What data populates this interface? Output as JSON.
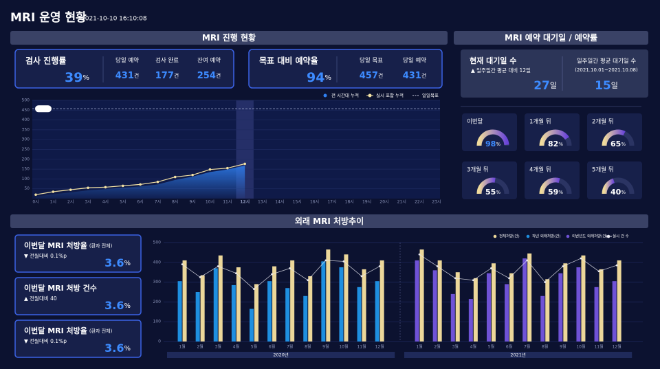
{
  "header": {
    "title": "MRI 운영 현황",
    "datetime": "2021-10-10 16:10:08"
  },
  "progress": {
    "title": "MRI 진행 현황",
    "kpi1": {
      "label": "검사 진행률",
      "value": 39,
      "unit": "%",
      "items": [
        {
          "label": "당일 예약",
          "value": 431,
          "unit": "건"
        },
        {
          "label": "검사 완료",
          "value": 177,
          "unit": "건"
        },
        {
          "label": "잔여 예약",
          "value": 254,
          "unit": "건"
        }
      ]
    },
    "kpi2": {
      "label": "목표 대비 예약율",
      "value": 94,
      "unit": "%",
      "items": [
        {
          "label": "당일 목표",
          "value": 457,
          "unit": "건"
        },
        {
          "label": "당일 예약",
          "value": 431,
          "unit": "건"
        }
      ]
    }
  },
  "reservation": {
    "title": "MRI 예약 대기일 / 예약률",
    "current": {
      "label": "현재 대기일 수",
      "note": "▲ 일주일간 평균 대비 12일",
      "value": 27,
      "unit": "일"
    },
    "weekly": {
      "label": "일주일간 평균 대기일 수",
      "period": "(2021.10.01~2021.10.08)",
      "value": 15,
      "unit": "일"
    },
    "gauges": [
      {
        "label": "이번달",
        "value": 98,
        "unit": "%"
      },
      {
        "label": "1개월 뒤",
        "value": 82,
        "unit": "%"
      },
      {
        "label": "2개월 뒤",
        "value": 65,
        "unit": "%"
      },
      {
        "label": "3개월 뒤",
        "value": 55,
        "unit": "%"
      },
      {
        "label": "4개월 뒤",
        "value": 59,
        "unit": "%"
      },
      {
        "label": "5개월 뒤",
        "value": 40,
        "unit": "%"
      }
    ]
  },
  "prescription": {
    "title": "외래 MRI 처방추이",
    "cards": [
      {
        "title": "이번달 MRI 처방율",
        "sub": "(환자 전체)",
        "change": "▼ 전월대비 0.1%p",
        "direction": "down",
        "value": 3.6,
        "unit": "%"
      },
      {
        "title": "이번달 MRI 처방 건수",
        "sub": "",
        "change": "▲ 전월대비 40",
        "direction": "up",
        "value": 3.6,
        "unit": "%"
      },
      {
        "title": "이번달 MRI 처방율",
        "sub": "(환자 전체)",
        "change": "▼ 전월대비 0.1%p",
        "direction": "down",
        "value": 3.6,
        "unit": "%"
      }
    ]
  },
  "chart_data": [
    {
      "type": "line",
      "categories": [
        "0시",
        "1시",
        "2시",
        "3시",
        "4시",
        "5시",
        "6시",
        "7시",
        "8시",
        "9시",
        "10시",
        "11시",
        "12시",
        "13시",
        "14시",
        "15시",
        "16시",
        "17시",
        "18시",
        "19시",
        "20시",
        "21시",
        "22시",
        "23시"
      ],
      "highlight_category": "12시",
      "ylim": [
        0,
        500
      ],
      "yticks": [
        50,
        100,
        150,
        200,
        250,
        300,
        350,
        400,
        450,
        500
      ],
      "grid": true,
      "series": [
        {
          "name": "전 시간대 누적",
          "color": "#2f7ff0",
          "values": [
            10,
            22,
            32,
            42,
            48,
            55,
            62,
            72,
            95,
            112,
            135,
            148,
            168,
            null,
            null,
            null,
            null,
            null,
            null,
            null,
            null,
            null,
            null,
            null
          ]
        },
        {
          "name": "실시 포함 누적",
          "color": "#f3e2a4",
          "values": [
            20,
            35,
            45,
            55,
            58,
            65,
            72,
            85,
            110,
            120,
            148,
            155,
            177,
            null,
            null,
            null,
            null,
            null,
            null,
            null,
            null,
            null,
            null,
            null
          ]
        }
      ],
      "target": {
        "name": "일일목표",
        "value": 457,
        "label": "457건"
      }
    },
    {
      "type": "bar",
      "groups": [
        {
          "label": "2020년",
          "categories": [
            "1월",
            "2월",
            "3월",
            "4월",
            "5월",
            "6월",
            "7월",
            "8월",
            "9월",
            "10월",
            "11월",
            "12월"
          ]
        },
        {
          "label": "2021년",
          "categories": [
            "1월",
            "2월",
            "3월",
            "4월",
            "5월",
            "6월",
            "7월",
            "8월",
            "9월",
            "10월",
            "11월",
            "12월"
          ]
        }
      ],
      "ylim": [
        0,
        500
      ],
      "yticks": [
        0,
        100,
        200,
        300,
        400,
        500
      ],
      "grid": true,
      "series": [
        {
          "name": "전체처방(건)",
          "color": "#ecd79a",
          "values": [
            410,
            335,
            435,
            375,
            290,
            380,
            410,
            330,
            465,
            440,
            365,
            410,
            465,
            410,
            350,
            320,
            395,
            345,
            445,
            315,
            395,
            435,
            365,
            410
          ]
        },
        {
          "name": "작년 외래처방(건)",
          "color": "#1e8fe0",
          "values": [
            305,
            250,
            370,
            285,
            165,
            305,
            270,
            230,
            405,
            375,
            275,
            305,
            null,
            null,
            null,
            null,
            null,
            null,
            null,
            null,
            null,
            null,
            null,
            null
          ]
        },
        {
          "name": "이번년도 외래처방(건)",
          "color": "#6f52d6",
          "values": [
            null,
            null,
            null,
            null,
            null,
            null,
            null,
            null,
            null,
            null,
            null,
            null,
            410,
            360,
            240,
            215,
            345,
            290,
            420,
            230,
            345,
            375,
            275,
            305
          ]
        },
        {
          "name": "실시 건 수",
          "type": "line",
          "color": "#e8e8f0",
          "values": [
            390,
            325,
            380,
            345,
            265,
            340,
            370,
            310,
            410,
            405,
            330,
            380,
            440,
            380,
            320,
            310,
            370,
            320,
            410,
            300,
            380,
            420,
            355,
            385
          ]
        }
      ]
    }
  ]
}
